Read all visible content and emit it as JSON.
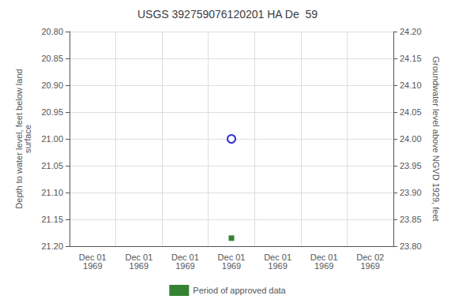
{
  "chart_data": {
    "type": "scatter",
    "title": "USGS 392759076120201 HA De  59",
    "ylabel": "Depth to water level, feet below land\nsurface",
    "y2label": "Groundwater level above NGVD 1929, feet",
    "categories": [
      "Dec 01\n1969",
      "Dec 01\n1969",
      "Dec 01\n1969",
      "Dec 01\n1969",
      "Dec 01\n1969",
      "Dec 01\n1969",
      "Dec 02\n1969"
    ],
    "series": [
      {
        "color": "#0000cc",
        "marker": "open_circle",
        "values": [
          null,
          null,
          null,
          21.0,
          null,
          null,
          null
        ]
      },
      {
        "name": "Period of approved data",
        "color": "#006400",
        "marker": "square",
        "values": [
          null,
          null,
          null,
          21.185,
          null,
          null,
          null
        ]
      }
    ],
    "ylim": [
      21.2,
      20.8
    ],
    "yticks": [
      {
        "value": 20.8,
        "label": "20.80"
      },
      {
        "value": 20.85,
        "label": "20.85"
      },
      {
        "value": 20.9,
        "label": "20.90"
      },
      {
        "value": 20.95,
        "label": "20.95"
      },
      {
        "value": 21.0,
        "label": "21.00"
      },
      {
        "value": 21.05,
        "label": "21.05"
      },
      {
        "value": 21.1,
        "label": "21.10"
      },
      {
        "value": 21.15,
        "label": "21.15"
      },
      {
        "value": 21.2,
        "label": "21.20"
      }
    ],
    "y2lim": [
      23.8,
      24.2
    ],
    "y2ticks": [
      {
        "value": 24.2,
        "label": "24.20"
      },
      {
        "value": 24.15,
        "label": "24.15"
      },
      {
        "value": 24.1,
        "label": "24.10"
      },
      {
        "value": 24.05,
        "label": "24.05"
      },
      {
        "value": 24.0,
        "label": "24.00"
      },
      {
        "value": 23.95,
        "label": "23.95"
      },
      {
        "value": 23.9,
        "label": "23.90"
      },
      {
        "value": 23.85,
        "label": "23.85"
      },
      {
        "value": 23.8,
        "label": "23.80"
      }
    ],
    "grid": true,
    "legend": "bottom"
  }
}
